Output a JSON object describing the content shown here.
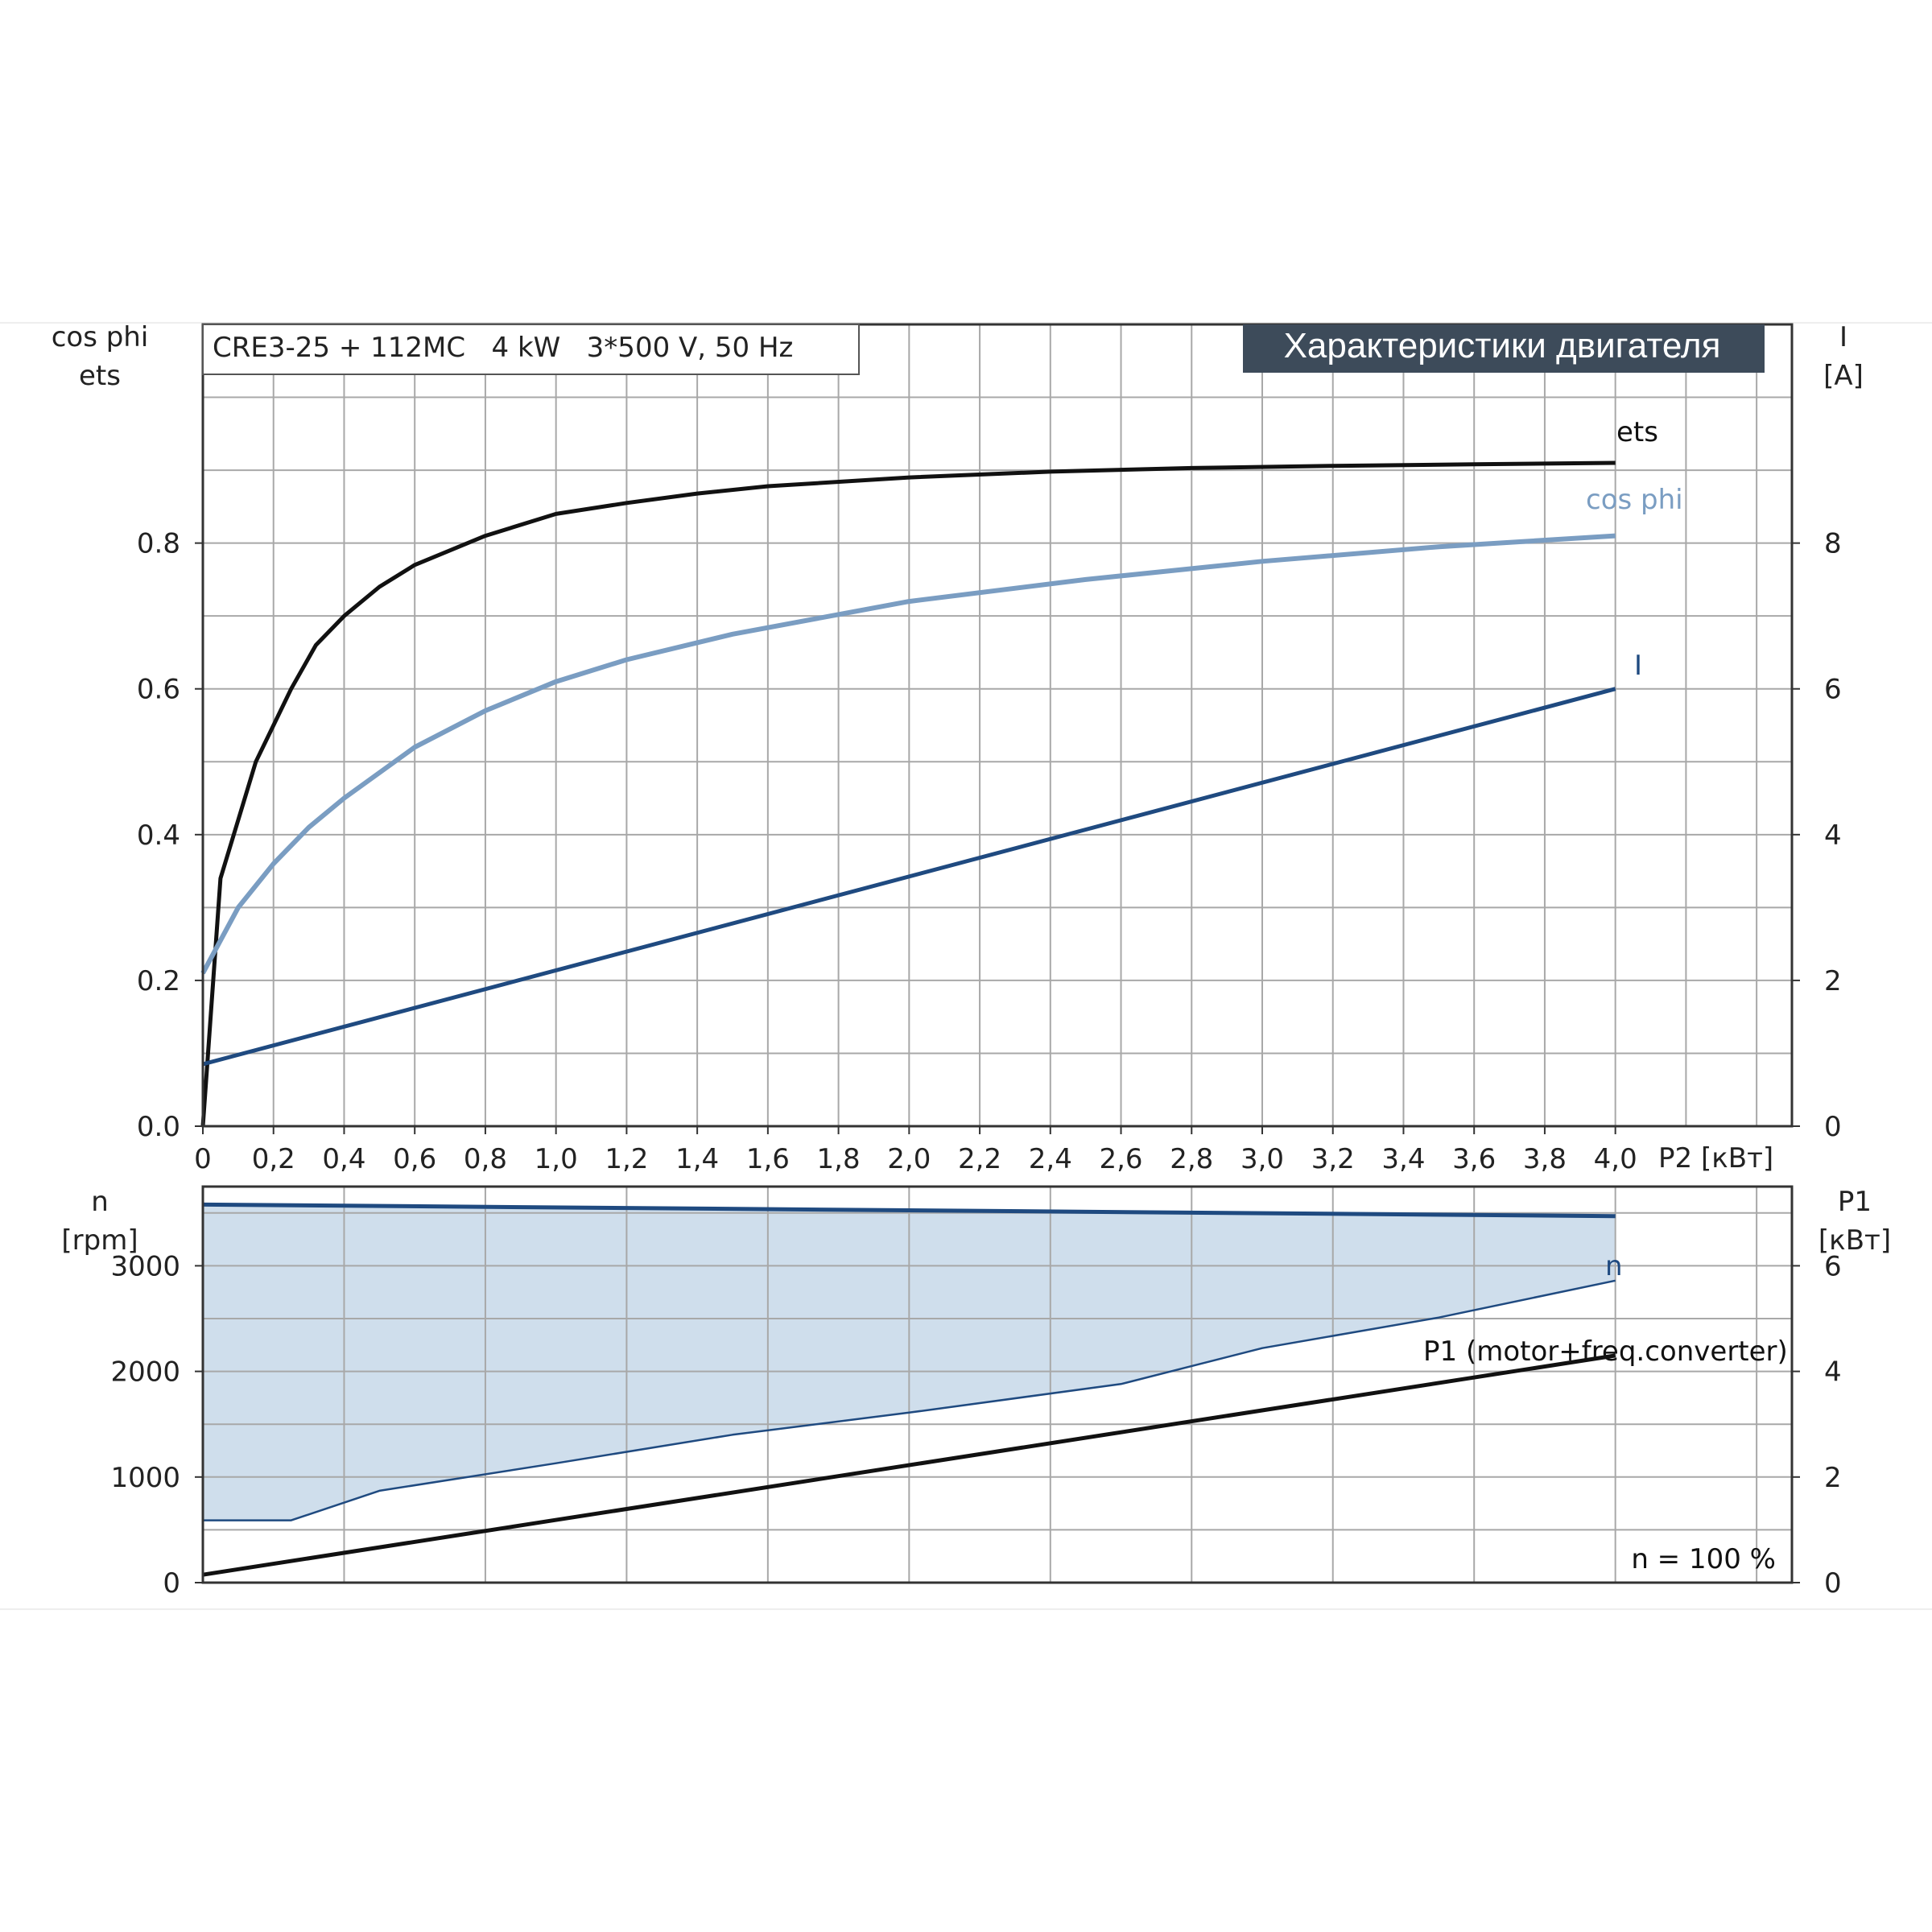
{
  "header": {
    "model_text": "CRE3-25 + 112MC   4 kW   3*500 V, 50 Hz",
    "title": "Характеристики двигателя"
  },
  "colors": {
    "ets": "#111111",
    "cos_phi": "#7a9dc2",
    "current": "#1f4a80",
    "speed": "#1f4a80",
    "p1": "#111111",
    "fill": "#cfdeec",
    "grid": "#a8a8a8",
    "title_bg": "#3d4b5a"
  },
  "chart_data": [
    {
      "type": "line",
      "x_label": "P2 [кВт]",
      "x_ticks": [
        "0",
        "0,2",
        "0,4",
        "0,6",
        "0,8",
        "1,0",
        "1,2",
        "1,4",
        "1,6",
        "1,8",
        "2,0",
        "2,2",
        "2,4",
        "2,6",
        "2,8",
        "3,0",
        "3,2",
        "3,4",
        "3,6",
        "3,8",
        "4,0"
      ],
      "xlim": [
        0,
        4.5
      ],
      "left_axis": {
        "label_top": "cos phi",
        "label_bottom": "ets",
        "ticks": [
          "0.0",
          "0.2",
          "0.4",
          "0.6",
          "0.8"
        ],
        "ylim": [
          0,
          1.1
        ]
      },
      "right_axis": {
        "label_top": "I",
        "label_bottom": "[A]",
        "ticks": [
          "0",
          "2",
          "4",
          "6",
          "8"
        ],
        "ylim": [
          0,
          11
        ]
      },
      "grid": true,
      "series": [
        {
          "name": "ets",
          "axis": "left",
          "x": [
            0,
            0.05,
            0.1,
            0.15,
            0.25,
            0.32,
            0.4,
            0.5,
            0.6,
            0.8,
            1.0,
            1.2,
            1.4,
            1.6,
            2.0,
            2.4,
            2.8,
            3.2,
            3.6,
            4.0
          ],
          "y": [
            0,
            0.34,
            0.42,
            0.5,
            0.6,
            0.66,
            0.7,
            0.74,
            0.77,
            0.81,
            0.84,
            0.855,
            0.868,
            0.878,
            0.89,
            0.898,
            0.903,
            0.906,
            0.908,
            0.91
          ]
        },
        {
          "name": "cos phi",
          "axis": "left",
          "x": [
            0,
            0.1,
            0.2,
            0.3,
            0.4,
            0.6,
            0.8,
            1.0,
            1.2,
            1.5,
            2.0,
            2.5,
            3.0,
            3.5,
            4.0
          ],
          "y": [
            0.21,
            0.3,
            0.36,
            0.41,
            0.45,
            0.52,
            0.57,
            0.61,
            0.64,
            0.675,
            0.72,
            0.75,
            0.775,
            0.795,
            0.81
          ]
        },
        {
          "name": "I",
          "axis": "right",
          "x": [
            0,
            4.0
          ],
          "y": [
            0.85,
            6.0
          ]
        }
      ]
    },
    {
      "type": "area",
      "x_ticks_shared": true,
      "left_axis": {
        "label_top": "n",
        "label_bottom": "[rpm]",
        "ticks": [
          "0",
          "1000",
          "2000",
          "3000"
        ],
        "ylim": [
          0,
          3750
        ]
      },
      "right_axis": {
        "label_top": "P1",
        "label_bottom": "[кВт]",
        "ticks": [
          "0",
          "2",
          "4",
          "6"
        ],
        "ylim": [
          0,
          7.5
        ]
      },
      "grid": true,
      "annotation": "n = 100 %",
      "series": [
        {
          "name": "n",
          "axis": "left",
          "x": [
            0,
            4.0
          ],
          "y": [
            3580,
            3470
          ]
        },
        {
          "name": "",
          "axis": "left",
          "x": [
            0,
            0.25,
            0.5,
            1.0,
            1.5,
            2.0,
            2.6,
            3.0,
            3.5,
            4.0
          ],
          "y": [
            590,
            590,
            870,
            1130,
            1400,
            1610,
            1880,
            2220,
            2510,
            2860
          ]
        },
        {
          "name": "P1 (motor+freq.converter)",
          "axis": "right",
          "x": [
            0,
            4.0
          ],
          "y": [
            0.15,
            4.3
          ]
        }
      ]
    }
  ]
}
